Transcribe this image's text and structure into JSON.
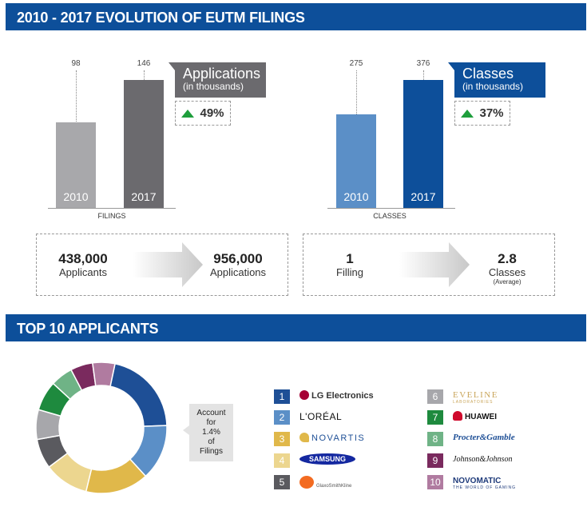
{
  "banner1": "2010 - 2017 EVOLUTION OF EUTM FILINGS",
  "banner2": "TOP 10 APPLICANTS",
  "chart_data": [
    {
      "type": "bar",
      "categories": [
        "2010",
        "2017"
      ],
      "values": [
        98,
        146
      ],
      "xlabel": "FILINGS",
      "callout_title": "Applications",
      "callout_unit": "(in thousands)",
      "growth": "49%",
      "colors": [
        "#a8a8ab",
        "#6b6a6e"
      ]
    },
    {
      "type": "bar",
      "categories": [
        "2010",
        "2017"
      ],
      "values": [
        275,
        376
      ],
      "xlabel": "CLASSES",
      "callout_title": "Classes",
      "callout_unit": "(in thousands)",
      "growth": "37%",
      "colors": [
        "#5b8fc7",
        "#0d4f9a"
      ]
    },
    {
      "type": "pie",
      "donut": true,
      "note": [
        "Account",
        "for",
        "1.4%",
        "of",
        "Filings"
      ],
      "slices": [
        {
          "rank": 1,
          "value": 23,
          "color": "#1e4f96"
        },
        {
          "rank": 2,
          "value": 15,
          "color": "#5b8fc7"
        },
        {
          "rank": 3,
          "value": 17,
          "color": "#e0b84a"
        },
        {
          "rank": 4,
          "value": 12,
          "color": "#ecd68f"
        },
        {
          "rank": 5,
          "value": 8,
          "color": "#5a5a5f"
        },
        {
          "rank": 6,
          "value": 8,
          "color": "#a7a7ab"
        },
        {
          "rank": 7,
          "value": 8,
          "color": "#1e8a3e"
        },
        {
          "rank": 8,
          "value": 6,
          "color": "#6fb386"
        },
        {
          "rank": 9,
          "value": 6,
          "color": "#7a2a5e"
        },
        {
          "rank": 10,
          "value": 6,
          "color": "#b07ba0"
        }
      ]
    }
  ],
  "stats": {
    "left": {
      "from_num": "438,000",
      "from_lbl": "Applicants",
      "to_num": "956,000",
      "to_lbl": "Applications"
    },
    "right": {
      "from_num": "1",
      "from_lbl": "Filling",
      "to_num": "2.8",
      "to_lbl": "Classes",
      "to_sub": "(Average)"
    }
  },
  "applicants": [
    {
      "rank": "1",
      "name": "LG Electronics",
      "color": "#1e4f96",
      "text_color": "#333",
      "icon": "lg-logo-icon"
    },
    {
      "rank": "2",
      "name": "L'ORÉAL",
      "color": "#5b8fc7",
      "text_color": "#111",
      "icon": ""
    },
    {
      "rank": "3",
      "name": "NOVARTIS",
      "color": "#e0b84a",
      "text_color": "#1e4f96",
      "icon": "novartis-flame-icon"
    },
    {
      "rank": "4",
      "name": "SAMSUNG",
      "color": "#ecd68f",
      "text_color": "#ffffff",
      "icon": ""
    },
    {
      "rank": "5",
      "name": "GlaxoSmithKline",
      "color": "#5a5a5f",
      "text_color": "#333",
      "icon": "gsk-logo-icon"
    },
    {
      "rank": "6",
      "name": "EVELINE",
      "sub": "LABORATORIES",
      "color": "#a7a7ab",
      "text_color": "#c9a55a",
      "icon": ""
    },
    {
      "rank": "7",
      "name": "HUAWEI",
      "color": "#1e8a3e",
      "text_color": "#111",
      "icon": "huawei-petal-icon"
    },
    {
      "rank": "8",
      "name": "Procter&Gamble",
      "color": "#6fb386",
      "text_color": "#1e4f96",
      "icon": ""
    },
    {
      "rank": "9",
      "name": "Johnson&Johnson",
      "color": "#7a2a5e",
      "text_color": "#111",
      "icon": ""
    },
    {
      "rank": "10",
      "name": "NOVOMATIC",
      "sub": "THE WORLD OF GAMING",
      "color": "#b07ba0",
      "text_color": "#1e3a7a",
      "icon": ""
    }
  ]
}
